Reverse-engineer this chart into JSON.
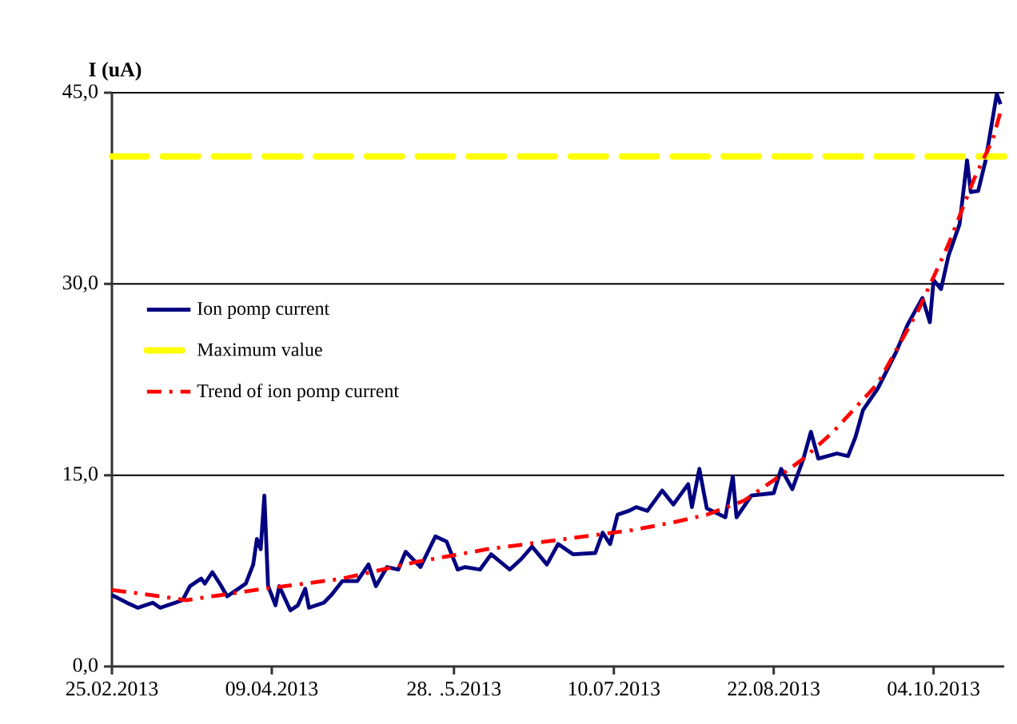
{
  "chart_data": {
    "type": "line",
    "ylabel": "I (uA)",
    "xlim": [
      "2013-02-25",
      "2013-10-23"
    ],
    "ylim": [
      0,
      45
    ],
    "xticks": [
      {
        "value": "2013-02-25",
        "label": "25.02.2013"
      },
      {
        "value": "2013-04-09",
        "label": "09.04.2013"
      },
      {
        "value": "2013-05-28",
        "label": "28. .5.2013"
      },
      {
        "value": "2013-07-10",
        "label": "10.07.2013"
      },
      {
        "value": "2013-08-22",
        "label": "22.08.2013"
      },
      {
        "value": "2013-10-04",
        "label": "04.10.2013"
      }
    ],
    "yticks": [
      {
        "value": 0,
        "label": "0,0"
      },
      {
        "value": 15,
        "label": "15,0"
      },
      {
        "value": 30,
        "label": "30,0"
      },
      {
        "value": 45,
        "label": "45,0"
      }
    ],
    "grid": "y",
    "legend": "left",
    "series": [
      {
        "name": "Ion pomp current",
        "color": "#000080",
        "line_style": "solid",
        "x": [
          "2013-02-25",
          "2013-03-01",
          "2013-03-04",
          "2013-03-08",
          "2013-03-10",
          "2013-03-14",
          "2013-03-16",
          "2013-03-18",
          "2013-03-21",
          "2013-03-22",
          "2013-03-24",
          "2013-03-26",
          "2013-03-28",
          "2013-03-31",
          "2013-04-02",
          "2013-04-04",
          "2013-04-05",
          "2013-04-06",
          "2013-04-07",
          "2013-04-08",
          "2013-04-10",
          "2013-04-11",
          "2013-04-14",
          "2013-04-16",
          "2013-04-18",
          "2013-04-19",
          "2013-04-23",
          "2013-04-25",
          "2013-04-28",
          "2013-05-02",
          "2013-05-05",
          "2013-05-07",
          "2013-05-10",
          "2013-05-13",
          "2013-05-15",
          "2013-05-19",
          "2013-05-23",
          "2013-05-26",
          "2013-05-29",
          "2013-05-31",
          "2013-06-04",
          "2013-06-07",
          "2013-06-12",
          "2013-06-15",
          "2013-06-18",
          "2013-06-22",
          "2013-06-25",
          "2013-06-29",
          "2013-07-05",
          "2013-07-07",
          "2013-07-09",
          "2013-07-11",
          "2013-07-14",
          "2013-07-16",
          "2013-07-19",
          "2013-07-23",
          "2013-07-26",
          "2013-07-30",
          "2013-07-31",
          "2013-08-02",
          "2013-08-04",
          "2013-08-09",
          "2013-08-11",
          "2013-08-12",
          "2013-08-16",
          "2013-08-22",
          "2013-08-24",
          "2013-08-27",
          "2013-08-30",
          "2013-09-01",
          "2013-09-03",
          "2013-09-08",
          "2013-09-11",
          "2013-09-13",
          "2013-09-15",
          "2013-09-19",
          "2013-09-24",
          "2013-09-27",
          "2013-10-01",
          "2013-10-03",
          "2013-10-04",
          "2013-10-06",
          "2013-10-08",
          "2013-10-11",
          "2013-10-13",
          "2013-10-14",
          "2013-10-16",
          "2013-10-18",
          "2013-10-21",
          "2013-10-22"
        ],
        "values": [
          5.6,
          5.0,
          4.6,
          5.0,
          4.6,
          5.0,
          5.2,
          6.3,
          6.9,
          6.5,
          7.4,
          6.5,
          5.5,
          6.1,
          6.5,
          8.0,
          10.0,
          9.2,
          13.4,
          6.3,
          4.8,
          6.3,
          4.4,
          4.8,
          6.1,
          4.6,
          5.0,
          5.6,
          6.7,
          6.7,
          8.0,
          6.3,
          7.8,
          7.6,
          9.0,
          7.8,
          10.2,
          9.8,
          7.6,
          7.8,
          7.6,
          8.8,
          7.6,
          8.4,
          9.4,
          8.0,
          9.6,
          8.8,
          8.9,
          10.5,
          9.6,
          11.9,
          12.2,
          12.5,
          12.2,
          13.8,
          12.7,
          14.3,
          12.5,
          15.5,
          12.4,
          11.7,
          14.9,
          11.7,
          13.4,
          13.6,
          15.5,
          13.9,
          16.3,
          18.4,
          16.3,
          16.7,
          16.5,
          18.0,
          20.1,
          21.8,
          24.7,
          26.8,
          28.9,
          27.0,
          30.3,
          29.6,
          32.2,
          34.7,
          39.7,
          37.2,
          37.3,
          39.7,
          44.9,
          44.1
        ]
      },
      {
        "name": "Trend of ion pomp current",
        "color": "#ff0000",
        "line_style": "dashed",
        "x": [
          "2013-02-25",
          "2013-03-10",
          "2013-03-17",
          "2013-04-07",
          "2013-04-18",
          "2013-04-28",
          "2013-05-18",
          "2013-06-06",
          "2013-06-27",
          "2013-07-15",
          "2013-07-26",
          "2013-08-04",
          "2013-08-14",
          "2013-08-22",
          "2013-08-30",
          "2013-09-07",
          "2013-09-19",
          "2013-09-30",
          "2013-10-08",
          "2013-10-15",
          "2013-10-20",
          "2013-10-22"
        ],
        "values": [
          6.0,
          5.5,
          5.2,
          6.1,
          6.5,
          6.9,
          8.2,
          9.2,
          10.0,
          10.7,
          11.3,
          11.9,
          13.0,
          14.6,
          16.3,
          18.4,
          22.2,
          28.0,
          33.1,
          38.3,
          41.4,
          43.5
        ]
      }
    ],
    "ref_lines": [
      {
        "axis": "y",
        "value": 40,
        "label": "Maximum value",
        "color": "#ffff00",
        "line_style": "dashed"
      }
    ]
  }
}
